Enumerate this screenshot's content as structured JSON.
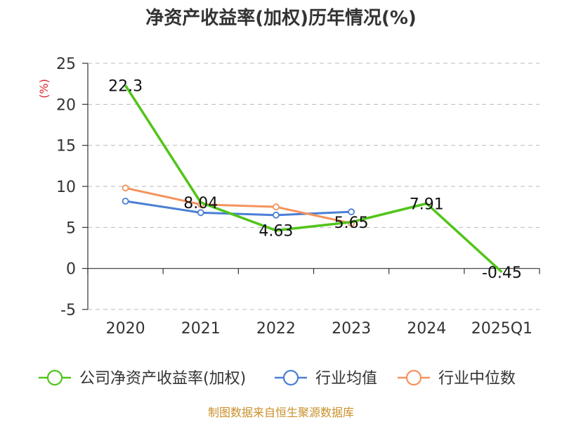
{
  "chart_data": {
    "type": "line",
    "title": "净资产收益率(加权)历年情况(%)",
    "ylabel": "(%)",
    "categories": [
      "2020",
      "2021",
      "2022",
      "2023",
      "2024",
      "2025Q1"
    ],
    "ylim": [
      -5,
      25
    ],
    "yticks": [
      -5,
      0,
      5,
      10,
      15,
      20,
      25
    ],
    "grid": true,
    "legend_position": "bottom",
    "series": [
      {
        "name": "公司净资产收益率(加权)",
        "color": "#52c41a",
        "values": [
          22.3,
          8.04,
          4.63,
          5.65,
          7.91,
          -0.45
        ],
        "labels": [
          "22.3",
          "8.04",
          "4.63",
          "5.65",
          "7.91",
          "-0.45"
        ]
      },
      {
        "name": "行业均值",
        "color": "#4a7fd4",
        "values": [
          8.2,
          6.8,
          6.5,
          6.9,
          null,
          null
        ]
      },
      {
        "name": "行业中位数",
        "color": "#f4935e",
        "values": [
          9.8,
          7.8,
          7.5,
          5.5,
          null,
          null
        ]
      }
    ]
  },
  "source": {
    "text": "制图数据来自恒生聚源数据库",
    "color": "#c8902a"
  },
  "ylabel_color": "#d9262c"
}
